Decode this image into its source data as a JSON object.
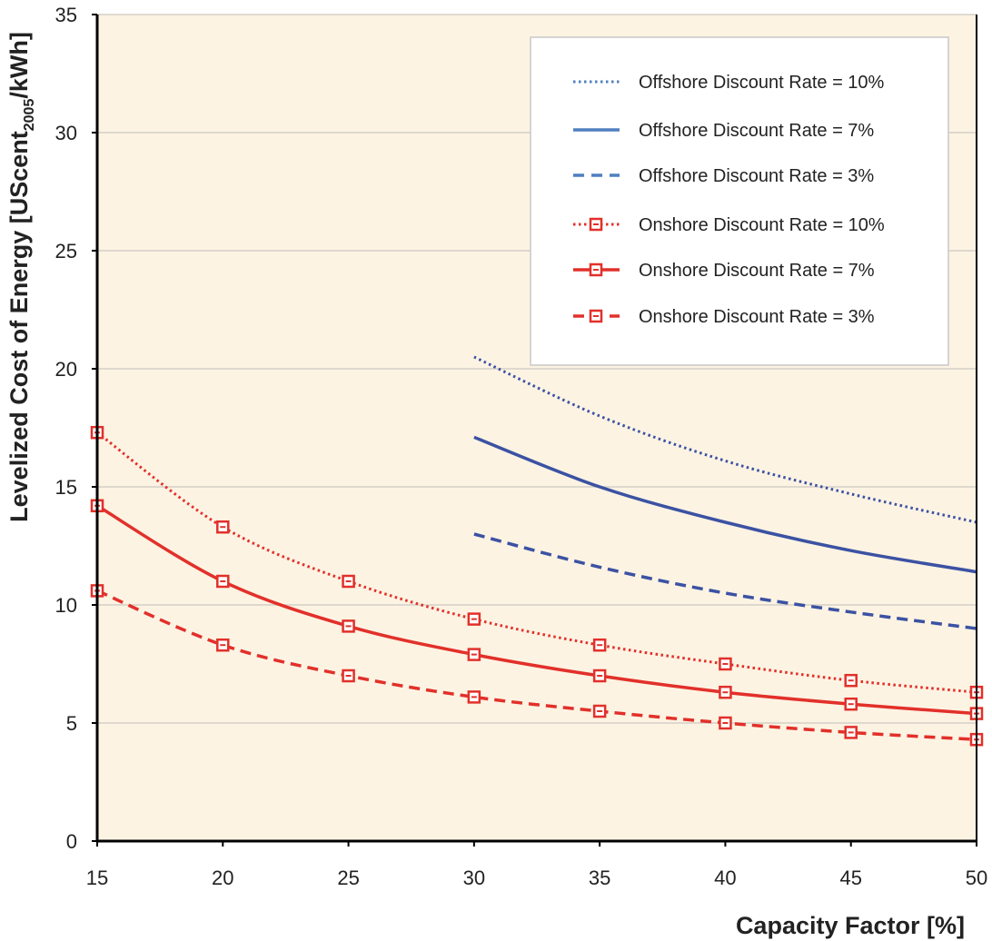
{
  "chart_data": {
    "type": "line",
    "xlabel": "Capacity Factor [%]",
    "ylabel": {
      "main": "Levelized Cost of Energy [UScent",
      "sub": "2005",
      "end": "/kWh]"
    },
    "xlim": [
      15,
      50
    ],
    "ylim": [
      0,
      35
    ],
    "xticks": [
      15,
      20,
      25,
      30,
      35,
      40,
      45,
      50
    ],
    "yticks": [
      0,
      5,
      10,
      15,
      20,
      25,
      30,
      35
    ],
    "grid": "horizontal",
    "legend_position": "top-right",
    "colors": {
      "background": "#fdf3e3",
      "offshore": "#3b52a3",
      "offshore_legend": "#4f7fc1",
      "onshore": "#e2302a",
      "grid": "#d4d0c8",
      "axis": "#000000"
    },
    "series": [
      {
        "name": "Offshore Discount Rate = 10%",
        "group": "offshore",
        "dash": "dotted",
        "markers": false,
        "x": [
          30,
          35,
          40,
          45,
          50
        ],
        "y": [
          20.5,
          18.0,
          16.1,
          14.7,
          13.5
        ]
      },
      {
        "name": "Offshore Discount Rate = 7%",
        "group": "offshore",
        "dash": "solid",
        "markers": false,
        "x": [
          30,
          35,
          40,
          45,
          50
        ],
        "y": [
          17.1,
          15.0,
          13.5,
          12.3,
          11.4
        ]
      },
      {
        "name": "Offshore Discount Rate = 3%",
        "group": "offshore",
        "dash": "dashed",
        "markers": false,
        "x": [
          30,
          35,
          40,
          45,
          50
        ],
        "y": [
          13.0,
          11.6,
          10.5,
          9.7,
          9.0
        ]
      },
      {
        "name": "Onshore Discount Rate = 10%",
        "group": "onshore",
        "dash": "dotted",
        "markers": true,
        "x": [
          15,
          20,
          25,
          30,
          35,
          40,
          45,
          50
        ],
        "y": [
          17.3,
          13.3,
          11.0,
          9.4,
          8.3,
          7.5,
          6.8,
          6.3
        ]
      },
      {
        "name": "Onshore Discount Rate = 7%",
        "group": "onshore",
        "dash": "solid",
        "markers": true,
        "x": [
          15,
          20,
          25,
          30,
          35,
          40,
          45,
          50
        ],
        "y": [
          14.2,
          11.0,
          9.1,
          7.9,
          7.0,
          6.3,
          5.8,
          5.4
        ]
      },
      {
        "name": "Onshore Discount Rate = 3%",
        "group": "onshore",
        "dash": "dashed",
        "markers": true,
        "x": [
          15,
          20,
          25,
          30,
          35,
          40,
          45,
          50
        ],
        "y": [
          10.6,
          8.3,
          7.0,
          6.1,
          5.5,
          5.0,
          4.6,
          4.3
        ]
      }
    ]
  }
}
